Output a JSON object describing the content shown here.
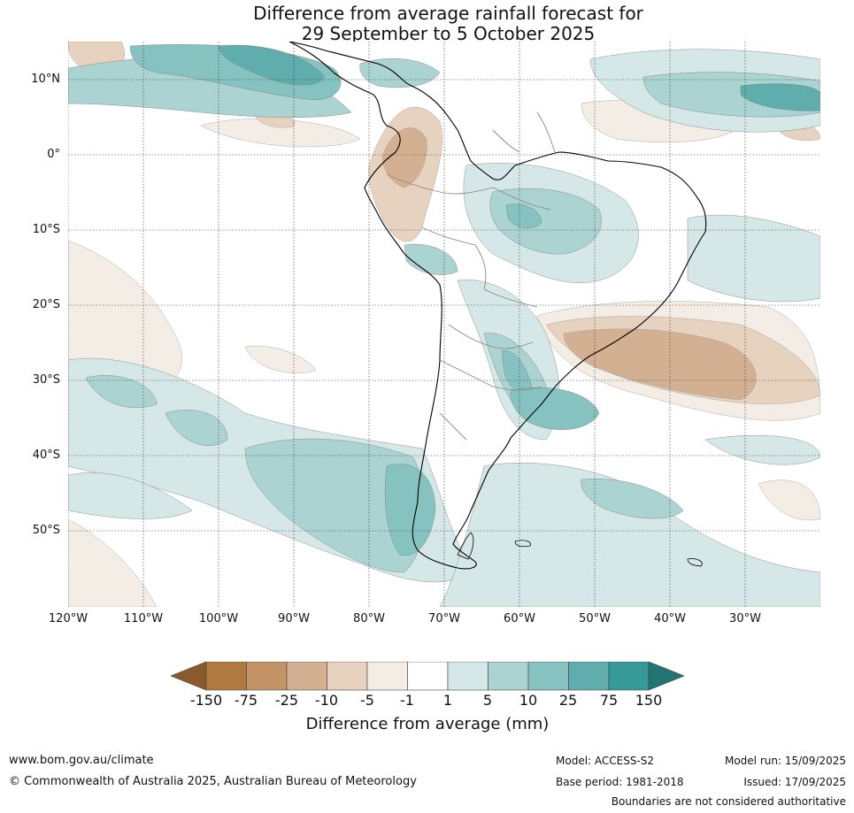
{
  "title": {
    "line1": "Difference from average rainfall forecast for",
    "line2": "29 September to 5 October 2025"
  },
  "map": {
    "lat_labels": [
      "10°N",
      "0°",
      "10°S",
      "20°S",
      "30°S",
      "40°S",
      "50°S"
    ],
    "lon_labels": [
      "120°W",
      "110°W",
      "100°W",
      "90°W",
      "80°W",
      "70°W",
      "60°W",
      "50°W",
      "40°W",
      "30°W"
    ]
  },
  "legend": {
    "labels": [
      "-150",
      "-75",
      "-25",
      "-10",
      "-5",
      "-1",
      "1",
      "5",
      "10",
      "25",
      "75",
      "150"
    ],
    "colors": [
      "#8b5a2b",
      "#b07a3e",
      "#c49467",
      "#d4b092",
      "#e6d2bf",
      "#f3ede6",
      "#ffffff",
      "#d5e8e7",
      "#abd3d2",
      "#86c2c0",
      "#5fadac",
      "#369a98",
      "#217674"
    ],
    "title": "Difference from average (mm)"
  },
  "footer": {
    "url": "www.bom.gov.au/climate",
    "copyright": "© Commonwealth of Australia 2025, Australian Bureau of Meteorology",
    "model": "Model: ACCESS-S2",
    "base_period": "Base period: 1981-2018",
    "model_run": "Model run: 15/09/2025",
    "issued": "Issued: 17/09/2025",
    "disclaimer": "Boundaries are not considered authoritative"
  }
}
